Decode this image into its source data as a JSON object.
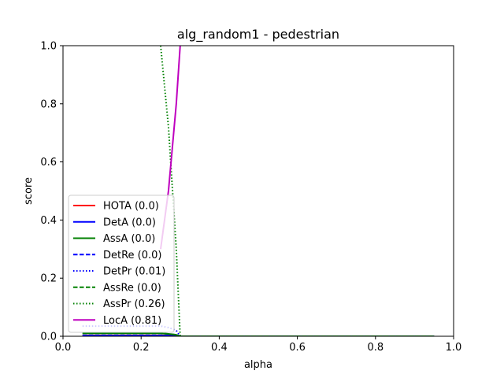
{
  "chart_data": {
    "type": "line",
    "title": "alg_random1 - pedestrian",
    "xlabel": "alpha",
    "ylabel": "score",
    "xlim": [
      0.0,
      1.0
    ],
    "ylim": [
      0.0,
      1.0
    ],
    "x_ticks": [
      "0.0",
      "0.2",
      "0.4",
      "0.6",
      "0.8",
      "1.0"
    ],
    "y_ticks": [
      "0.0",
      "0.2",
      "0.4",
      "0.6",
      "0.8",
      "1.0"
    ],
    "grid": false,
    "legend_position": "lower-left",
    "series": [
      {
        "name": "HOTA (0.0)",
        "color": "#ff0000",
        "style": "solid",
        "x": [
          0.05,
          0.25,
          0.27,
          0.29,
          0.3,
          0.95
        ],
        "y": [
          0.003,
          0.003,
          0.003,
          0.002,
          0.0,
          0.0
        ]
      },
      {
        "name": "DetA (0.0)",
        "color": "#0000ff",
        "style": "solid",
        "x": [
          0.05,
          0.25,
          0.27,
          0.29,
          0.3,
          0.95
        ],
        "y": [
          0.002,
          0.002,
          0.002,
          0.001,
          0.0,
          0.0
        ]
      },
      {
        "name": "AssA (0.0)",
        "color": "#008000",
        "style": "solid",
        "x": [
          0.05,
          0.25,
          0.27,
          0.29,
          0.3,
          0.95
        ],
        "y": [
          0.01,
          0.01,
          0.008,
          0.005,
          0.0,
          0.0
        ]
      },
      {
        "name": "DetRe (0.0)",
        "color": "#0000ff",
        "style": "dashed",
        "x": [
          0.05,
          0.25,
          0.27,
          0.29,
          0.3,
          0.95
        ],
        "y": [
          0.003,
          0.003,
          0.003,
          0.002,
          0.0,
          0.0
        ]
      },
      {
        "name": "DetPr (0.01)",
        "color": "#0000ff",
        "style": "dotted",
        "x": [
          0.05,
          0.25,
          0.27,
          0.29,
          0.3,
          0.95
        ],
        "y": [
          0.035,
          0.035,
          0.03,
          0.02,
          0.0,
          0.0
        ]
      },
      {
        "name": "AssRe (0.0)",
        "color": "#008000",
        "style": "dashed",
        "x": [
          0.05,
          0.25,
          0.27,
          0.29,
          0.3,
          0.95
        ],
        "y": [
          0.01,
          0.01,
          0.008,
          0.005,
          0.0,
          0.0
        ]
      },
      {
        "name": "AssPr (0.26)",
        "color": "#008000",
        "style": "dotted",
        "x": [
          0.25,
          0.27,
          0.29,
          0.3,
          0.95
        ],
        "y": [
          1.0,
          0.72,
          0.3,
          0.0,
          0.0
        ]
      },
      {
        "name": "LocA (0.81)",
        "color": "#bf00bf",
        "style": "solid",
        "x": [
          0.25,
          0.27,
          0.29,
          0.3
        ],
        "y": [
          0.3,
          0.5,
          0.8,
          1.0
        ]
      }
    ]
  }
}
